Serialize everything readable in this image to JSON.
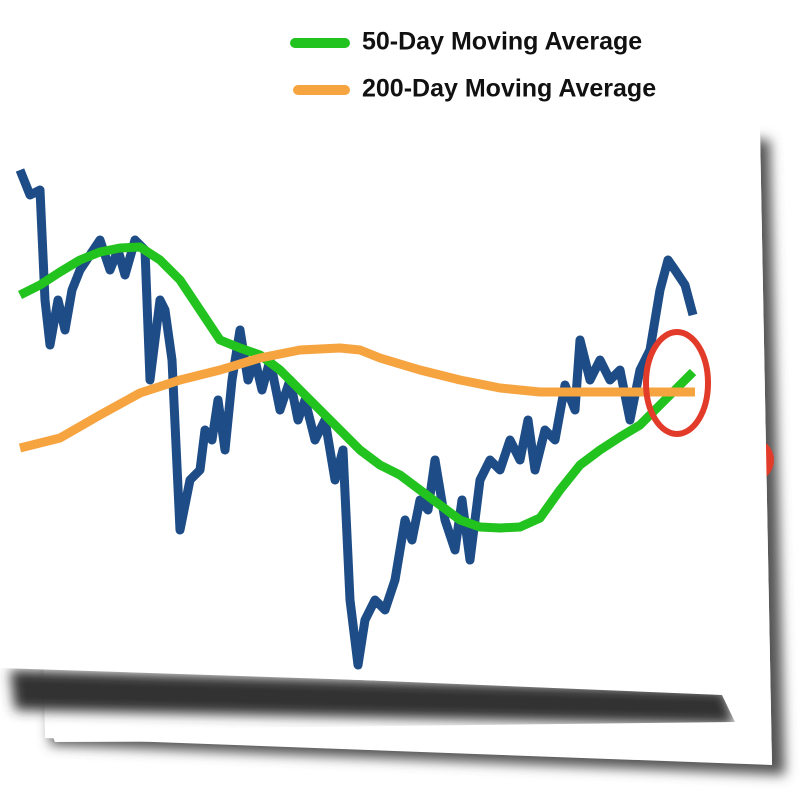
{
  "chart_data": {
    "type": "line",
    "xlim": [
      0,
      675
    ],
    "ylim": [
      0,
      650
    ],
    "legend": "top-right",
    "series": [
      {
        "color": "#1d4c86",
        "x": [
          0,
          10,
          20,
          25,
          30,
          38,
          45,
          52,
          60,
          70,
          80,
          90,
          98,
          105,
          115,
          125,
          130,
          140,
          145,
          152,
          160,
          170,
          180,
          185,
          192,
          198,
          205,
          212,
          220,
          228,
          235,
          242,
          250,
          260,
          270,
          278,
          285,
          295,
          305,
          315,
          323,
          330,
          338,
          345,
          355,
          365,
          375,
          385,
          392,
          400,
          408,
          415,
          425,
          435,
          442,
          450,
          460,
          470,
          480,
          490,
          500,
          508,
          515,
          525,
          535,
          545,
          555,
          560,
          570,
          580,
          590,
          600,
          610,
          620,
          630,
          640,
          648,
          655,
          665,
          673
        ],
        "values": [
          620,
          595,
          600,
          490,
          445,
          490,
          460,
          500,
          520,
          535,
          550,
          520,
          540,
          515,
          550,
          540,
          410,
          490,
          480,
          430,
          260,
          310,
          320,
          360,
          350,
          390,
          340,
          410,
          460,
          410,
          430,
          400,
          430,
          380,
          410,
          370,
          390,
          350,
          370,
          310,
          340,
          190,
          125,
          170,
          190,
          180,
          210,
          270,
          250,
          290,
          280,
          330,
          270,
          240,
          290,
          230,
          310,
          330,
          320,
          350,
          330,
          370,
          320,
          360,
          350,
          405,
          380,
          450,
          410,
          430,
          410,
          420,
          370,
          420,
          440,
          500,
          530,
          520,
          505,
          475
        ]
      },
      {
        "name": "50-Day Moving Average",
        "color": "#22c21f",
        "x": [
          0,
          20,
          40,
          60,
          80,
          100,
          120,
          140,
          160,
          180,
          200,
          220,
          240,
          260,
          280,
          300,
          320,
          340,
          360,
          380,
          400,
          420,
          440,
          460,
          480,
          500,
          520,
          540,
          560,
          580,
          600,
          620,
          640,
          660,
          673
        ],
        "values": [
          495,
          505,
          518,
          530,
          538,
          542,
          543,
          530,
          510,
          480,
          450,
          442,
          435,
          420,
          400,
          380,
          360,
          340,
          325,
          315,
          300,
          285,
          270,
          263,
          262,
          263,
          272,
          300,
          325,
          340,
          353,
          365,
          385,
          405,
          418
        ]
      },
      {
        "name": "200-Day Moving Average",
        "color": "#f6a440",
        "x": [
          0,
          40,
          80,
          120,
          160,
          200,
          240,
          280,
          320,
          340,
          360,
          400,
          440,
          480,
          520,
          560,
          600,
          640,
          675
        ],
        "values": [
          342,
          352,
          375,
          397,
          410,
          420,
          432,
          440,
          442,
          440,
          432,
          420,
          410,
          402,
          398,
          398,
          398,
          398,
          398
        ]
      }
    ]
  }
}
